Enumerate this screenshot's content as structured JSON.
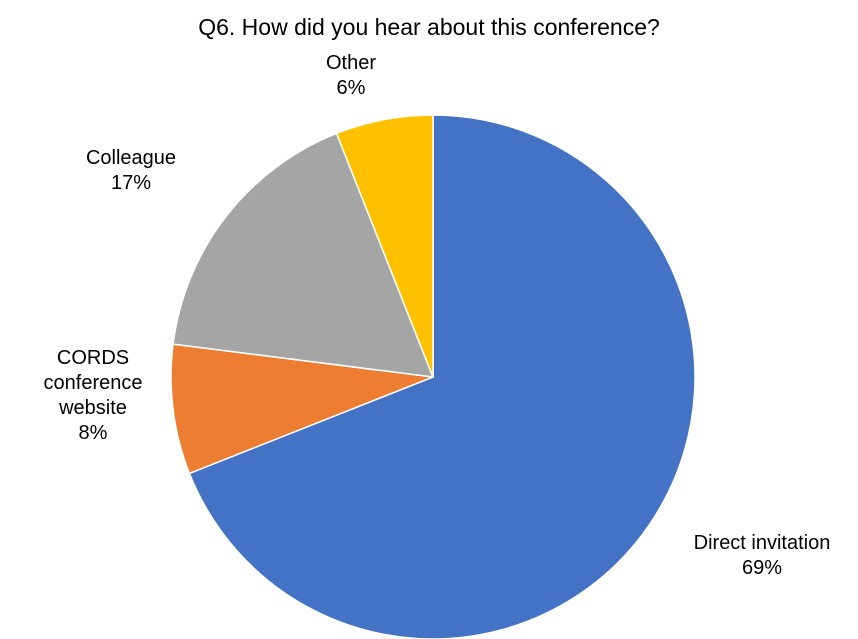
{
  "chart_data": {
    "type": "pie",
    "title": "Q6. How did you hear about this conference?",
    "slices": [
      {
        "label": "Direct invitation",
        "label_lines": [
          "Direct invitation"
        ],
        "value": 69,
        "value_label": "69%",
        "color": "#4472C4"
      },
      {
        "label": "CORDS conference website",
        "label_lines": [
          "CORDS",
          "conference",
          "website"
        ],
        "value": 8,
        "value_label": "8%",
        "color": "#ED7D31"
      },
      {
        "label": "Colleague",
        "label_lines": [
          "Colleague"
        ],
        "value": 17,
        "value_label": "17%",
        "color": "#A5A5A5"
      },
      {
        "label": "Other",
        "label_lines": [
          "Other"
        ],
        "value": 6,
        "value_label": "6%",
        "color": "#FFC000"
      }
    ],
    "start_angle": "12 o'clock",
    "direction": "clockwise",
    "legend": "none"
  }
}
